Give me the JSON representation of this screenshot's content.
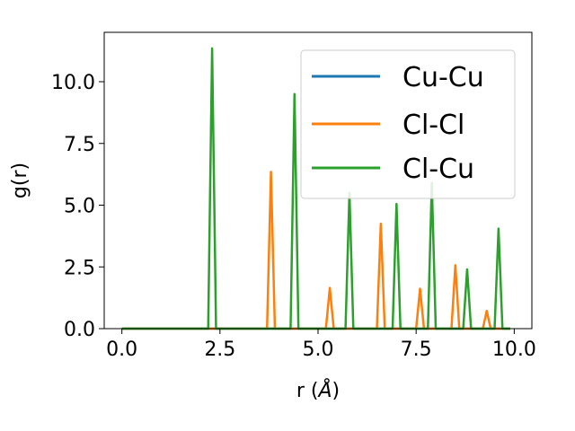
{
  "chart_data": {
    "type": "line",
    "xlabel_main": "r (",
    "xlabel_unit": "Å",
    "xlabel_close": ")",
    "ylabel": "g(r)",
    "xlim": [
      -0.45,
      10.45
    ],
    "ylim": [
      0,
      12.0
    ],
    "xticks": [
      0.0,
      2.5,
      5.0,
      7.5,
      10.0
    ],
    "xtick_labels": [
      "0.0",
      "2.5",
      "5.0",
      "7.5",
      "10.0"
    ],
    "yticks": [
      0.0,
      2.5,
      5.0,
      7.5,
      10.0
    ],
    "ytick_labels": [
      "0.0",
      "2.5",
      "5.0",
      "7.5",
      "10.0"
    ],
    "grid": false,
    "legend_position": "top-right",
    "peak_half_width": 0.1,
    "x_range": [
      0.0,
      9.9
    ],
    "series": [
      {
        "name": "Cu-Cu",
        "color": "#1f77b4",
        "peaks": []
      },
      {
        "name": "Cl-Cl",
        "color": "#ff7f0e",
        "peaks": [
          [
            3.8,
            6.35
          ],
          [
            5.3,
            1.65
          ],
          [
            6.6,
            4.25
          ],
          [
            7.6,
            1.62
          ],
          [
            8.5,
            2.57
          ],
          [
            9.3,
            0.72
          ]
        ]
      },
      {
        "name": "Cl-Cu",
        "color": "#2ca02c",
        "peaks": [
          [
            2.3,
            11.35
          ],
          [
            4.4,
            9.5
          ],
          [
            5.8,
            5.5
          ],
          [
            7.0,
            5.05
          ],
          [
            7.9,
            5.9
          ],
          [
            8.8,
            2.4
          ],
          [
            9.6,
            4.05
          ]
        ]
      }
    ]
  }
}
